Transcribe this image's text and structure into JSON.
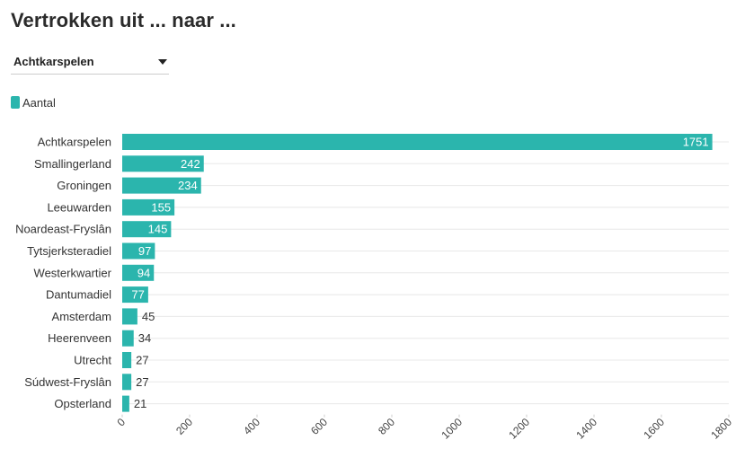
{
  "title": "Vertrokken uit ... naar ...",
  "dropdown": {
    "selected": "Achtkarspelen"
  },
  "legend": {
    "label": "Aantal",
    "color": "#2bb5ad"
  },
  "chart_data": {
    "type": "bar",
    "orientation": "horizontal",
    "categories": [
      "Achtkarspelen",
      "Smallingerland",
      "Groningen",
      "Leeuwarden",
      "Noardeast-Fryslân",
      "Tytsjerksteradiel",
      "Westerkwartier",
      "Dantumadiel",
      "Amsterdam",
      "Heerenveen",
      "Utrecht",
      "Súdwest-Fryslân",
      "Opsterland"
    ],
    "series": [
      {
        "name": "Aantal",
        "values": [
          1751,
          242,
          234,
          155,
          145,
          97,
          94,
          77,
          45,
          34,
          27,
          27,
          21
        ]
      }
    ],
    "xlim": [
      0,
      1800
    ],
    "xticks": [
      0,
      200,
      400,
      600,
      800,
      1000,
      1200,
      1400,
      1600,
      1800
    ],
    "grid": true,
    "legend_position": "top-left",
    "bar_color": "#2bb5ad"
  }
}
